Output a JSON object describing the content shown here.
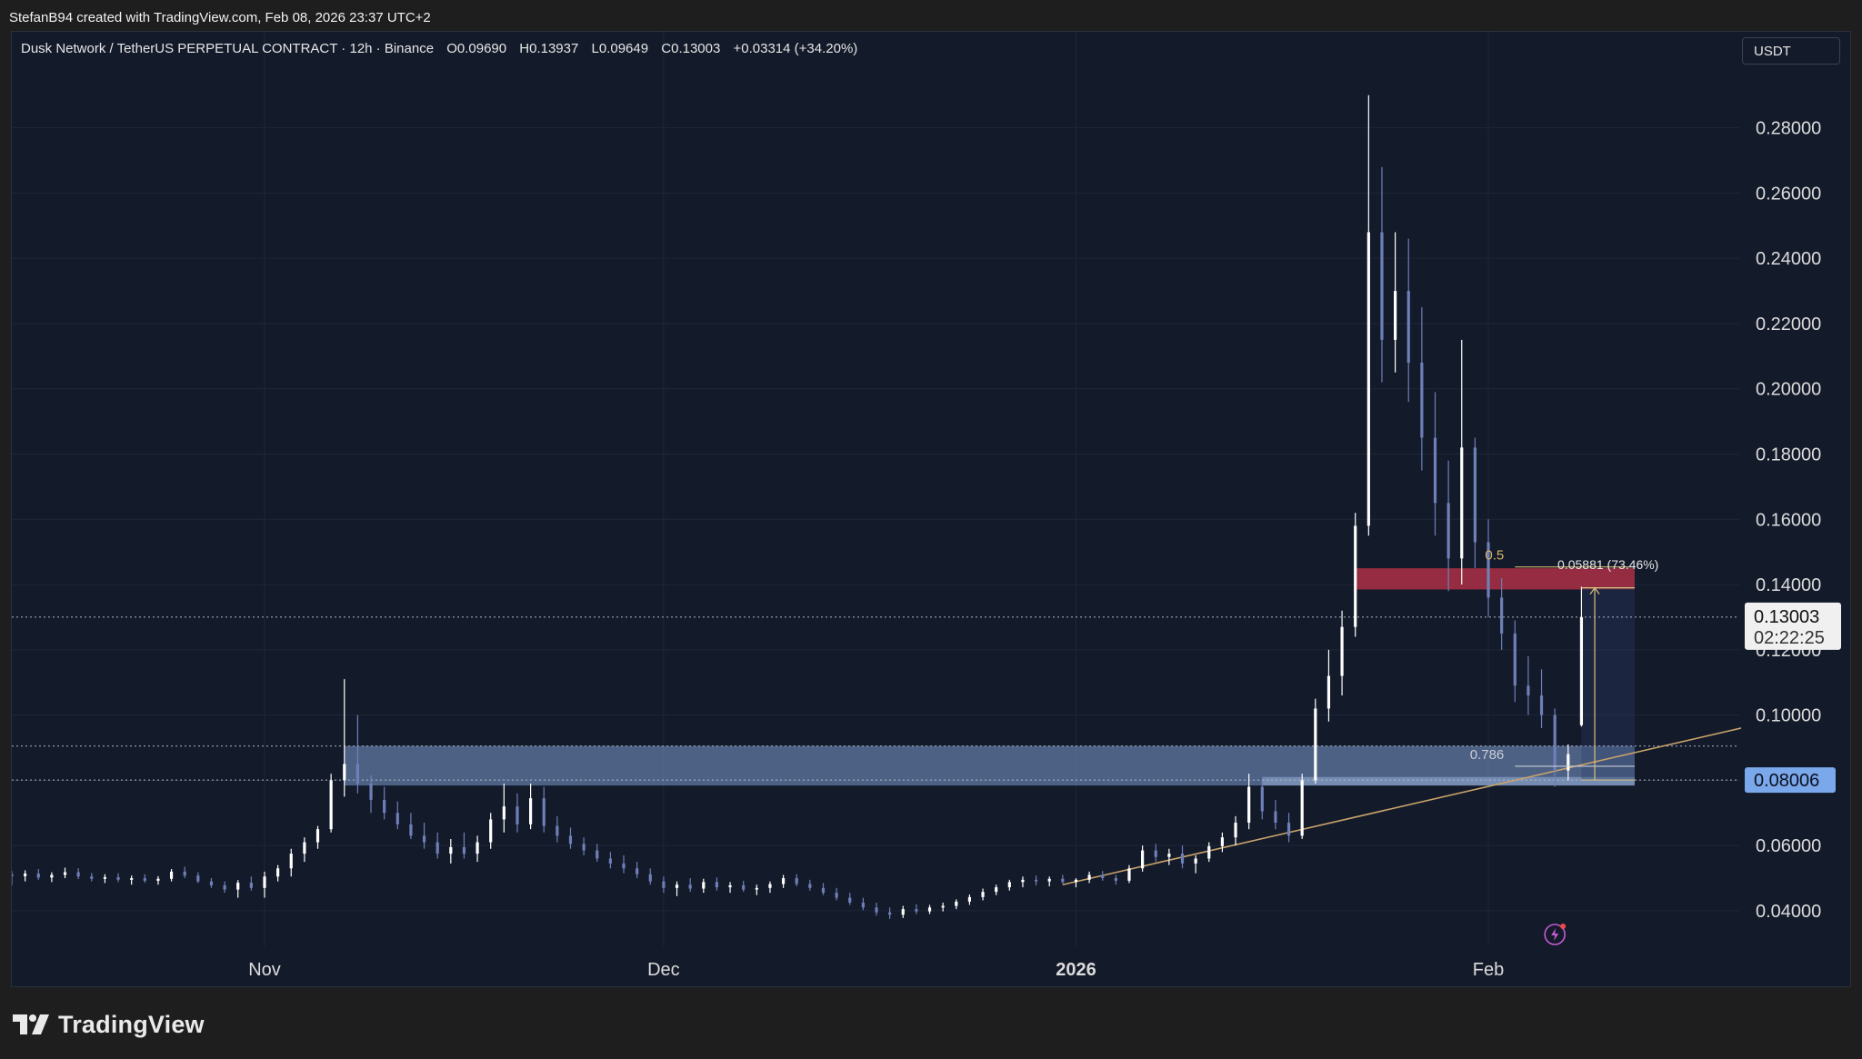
{
  "credit_line": "StefanB94 created with TradingView.com, Feb 08, 2026 23:37 UTC+2",
  "legend": {
    "symbol": "Dusk Network / TetherUS PERPETUAL CONTRACT · 12h · Binance",
    "open": "O0.09690",
    "high": "H0.13937",
    "low": "L0.09649",
    "close": "C0.13003",
    "change": "+0.03314 (+34.20%)"
  },
  "unit_label": "USDT",
  "brand": "TradingView",
  "colors": {
    "background": "#131a2a",
    "up_candle": "#ffffff",
    "down_candle": "#6f7fb8",
    "demand_zone": "#7d9ccf",
    "supply_zone": "#c2334a",
    "trendline": "#c8a26a",
    "price_tag": "#7aa8ea"
  },
  "chart_data": {
    "type": "candlestick",
    "title": "",
    "interval": "12h",
    "y_axis": {
      "min": 0.028,
      "max": 0.2955,
      "ticks": [
        "0.28000",
        "0.26000",
        "0.24000",
        "0.22000",
        "0.20000",
        "0.18000",
        "0.16000",
        "0.14000",
        "0.12000",
        "0.10000",
        "0.08000",
        "0.06000",
        "0.04000"
      ]
    },
    "x_axis": {
      "start": "2025-10-13",
      "end": "2026-02-20",
      "labels": [
        {
          "date": "2025-11-01",
          "text": "Nov",
          "bold": false
        },
        {
          "date": "2025-12-01",
          "text": "Dec",
          "bold": false
        },
        {
          "date": "2026-01-01",
          "text": "2026",
          "bold": true
        },
        {
          "date": "2026-02-01",
          "text": "Feb",
          "bold": false
        }
      ]
    },
    "current_price": {
      "value": 0.13003,
      "label": "0.13003",
      "countdown": "02:22:25"
    },
    "marked_level": {
      "value": 0.08006,
      "label": "0.08006"
    },
    "extra_dotted_level": 0.0905,
    "candles": [
      {
        "date": "2025-10-13",
        "o": 0.0512,
        "h": 0.0522,
        "l": 0.0478,
        "c": 0.0506
      },
      {
        "date": "2025-10-14",
        "o": 0.0506,
        "h": 0.0524,
        "l": 0.049,
        "c": 0.0514
      },
      {
        "date": "2025-10-15",
        "o": 0.0514,
        "h": 0.0528,
        "l": 0.0495,
        "c": 0.0502
      },
      {
        "date": "2025-10-16",
        "o": 0.0502,
        "h": 0.0518,
        "l": 0.0488,
        "c": 0.051
      },
      {
        "date": "2025-10-17",
        "o": 0.051,
        "h": 0.0532,
        "l": 0.05,
        "c": 0.0518
      },
      {
        "date": "2025-10-18",
        "o": 0.0518,
        "h": 0.053,
        "l": 0.0497,
        "c": 0.0505
      },
      {
        "date": "2025-10-19",
        "o": 0.0505,
        "h": 0.0516,
        "l": 0.049,
        "c": 0.0498
      },
      {
        "date": "2025-10-20",
        "o": 0.0498,
        "h": 0.0512,
        "l": 0.0485,
        "c": 0.0503
      },
      {
        "date": "2025-10-21",
        "o": 0.0503,
        "h": 0.0515,
        "l": 0.0488,
        "c": 0.0495
      },
      {
        "date": "2025-10-22",
        "o": 0.0495,
        "h": 0.0508,
        "l": 0.048,
        "c": 0.05
      },
      {
        "date": "2025-10-23",
        "o": 0.05,
        "h": 0.0512,
        "l": 0.0486,
        "c": 0.0492
      },
      {
        "date": "2025-10-24",
        "o": 0.0492,
        "h": 0.0506,
        "l": 0.048,
        "c": 0.0498
      },
      {
        "date": "2025-10-25",
        "o": 0.0498,
        "h": 0.0528,
        "l": 0.049,
        "c": 0.052
      },
      {
        "date": "2025-10-26",
        "o": 0.052,
        "h": 0.0535,
        "l": 0.05,
        "c": 0.0508
      },
      {
        "date": "2025-10-27",
        "o": 0.0508,
        "h": 0.0518,
        "l": 0.0485,
        "c": 0.049
      },
      {
        "date": "2025-10-28",
        "o": 0.049,
        "h": 0.05,
        "l": 0.047,
        "c": 0.0478
      },
      {
        "date": "2025-10-29",
        "o": 0.0478,
        "h": 0.049,
        "l": 0.0455,
        "c": 0.0465
      },
      {
        "date": "2025-10-30",
        "o": 0.0465,
        "h": 0.0494,
        "l": 0.044,
        "c": 0.0486
      },
      {
        "date": "2025-10-31",
        "o": 0.0486,
        "h": 0.0505,
        "l": 0.0462,
        "c": 0.047
      },
      {
        "date": "2025-11-01",
        "o": 0.047,
        "h": 0.052,
        "l": 0.044,
        "c": 0.0505
      },
      {
        "date": "2025-11-02",
        "o": 0.0505,
        "h": 0.054,
        "l": 0.049,
        "c": 0.053
      },
      {
        "date": "2025-11-03",
        "o": 0.053,
        "h": 0.059,
        "l": 0.0505,
        "c": 0.0575
      },
      {
        "date": "2025-11-04",
        "o": 0.0575,
        "h": 0.0625,
        "l": 0.055,
        "c": 0.061
      },
      {
        "date": "2025-11-05",
        "o": 0.061,
        "h": 0.066,
        "l": 0.059,
        "c": 0.065
      },
      {
        "date": "2025-11-06",
        "o": 0.065,
        "h": 0.082,
        "l": 0.064,
        "c": 0.08
      },
      {
        "date": "2025-11-07",
        "o": 0.08,
        "h": 0.111,
        "l": 0.075,
        "c": 0.085
      },
      {
        "date": "2025-11-08",
        "o": 0.085,
        "h": 0.1,
        "l": 0.076,
        "c": 0.079
      },
      {
        "date": "2025-11-09",
        "o": 0.079,
        "h": 0.0815,
        "l": 0.07,
        "c": 0.074
      },
      {
        "date": "2025-11-10",
        "o": 0.074,
        "h": 0.078,
        "l": 0.068,
        "c": 0.07
      },
      {
        "date": "2025-11-11",
        "o": 0.07,
        "h": 0.0735,
        "l": 0.065,
        "c": 0.0665
      },
      {
        "date": "2025-11-12",
        "o": 0.0665,
        "h": 0.07,
        "l": 0.062,
        "c": 0.063
      },
      {
        "date": "2025-11-13",
        "o": 0.063,
        "h": 0.067,
        "l": 0.059,
        "c": 0.061
      },
      {
        "date": "2025-11-14",
        "o": 0.061,
        "h": 0.064,
        "l": 0.056,
        "c": 0.0575
      },
      {
        "date": "2025-11-15",
        "o": 0.0575,
        "h": 0.062,
        "l": 0.0545,
        "c": 0.0595
      },
      {
        "date": "2025-11-16",
        "o": 0.0595,
        "h": 0.064,
        "l": 0.056,
        "c": 0.0575
      },
      {
        "date": "2025-11-17",
        "o": 0.0575,
        "h": 0.063,
        "l": 0.055,
        "c": 0.061
      },
      {
        "date": "2025-11-18",
        "o": 0.061,
        "h": 0.07,
        "l": 0.059,
        "c": 0.068
      },
      {
        "date": "2025-11-19",
        "o": 0.068,
        "h": 0.079,
        "l": 0.064,
        "c": 0.072
      },
      {
        "date": "2025-11-20",
        "o": 0.072,
        "h": 0.076,
        "l": 0.064,
        "c": 0.0665
      },
      {
        "date": "2025-11-21",
        "o": 0.0665,
        "h": 0.079,
        "l": 0.065,
        "c": 0.0745
      },
      {
        "date": "2025-11-22",
        "o": 0.0745,
        "h": 0.078,
        "l": 0.064,
        "c": 0.066
      },
      {
        "date": "2025-11-23",
        "o": 0.066,
        "h": 0.069,
        "l": 0.061,
        "c": 0.063
      },
      {
        "date": "2025-11-24",
        "o": 0.063,
        "h": 0.0655,
        "l": 0.059,
        "c": 0.0605
      },
      {
        "date": "2025-11-25",
        "o": 0.0605,
        "h": 0.0625,
        "l": 0.057,
        "c": 0.0585
      },
      {
        "date": "2025-11-26",
        "o": 0.0585,
        "h": 0.0605,
        "l": 0.055,
        "c": 0.056
      },
      {
        "date": "2025-11-27",
        "o": 0.056,
        "h": 0.058,
        "l": 0.053,
        "c": 0.0545
      },
      {
        "date": "2025-11-28",
        "o": 0.0545,
        "h": 0.057,
        "l": 0.0515,
        "c": 0.053
      },
      {
        "date": "2025-11-29",
        "o": 0.053,
        "h": 0.055,
        "l": 0.05,
        "c": 0.0512
      },
      {
        "date": "2025-11-30",
        "o": 0.0512,
        "h": 0.053,
        "l": 0.048,
        "c": 0.049
      },
      {
        "date": "2025-12-01",
        "o": 0.049,
        "h": 0.0505,
        "l": 0.0455,
        "c": 0.047
      },
      {
        "date": "2025-12-02",
        "o": 0.047,
        "h": 0.049,
        "l": 0.0445,
        "c": 0.048
      },
      {
        "date": "2025-12-03",
        "o": 0.048,
        "h": 0.05,
        "l": 0.0458,
        "c": 0.0468
      },
      {
        "date": "2025-12-04",
        "o": 0.0468,
        "h": 0.0498,
        "l": 0.0455,
        "c": 0.0488
      },
      {
        "date": "2025-12-05",
        "o": 0.0488,
        "h": 0.0502,
        "l": 0.0462,
        "c": 0.0472
      },
      {
        "date": "2025-12-06",
        "o": 0.0472,
        "h": 0.0488,
        "l": 0.0455,
        "c": 0.0478
      },
      {
        "date": "2025-12-07",
        "o": 0.0478,
        "h": 0.0492,
        "l": 0.0458,
        "c": 0.0465
      },
      {
        "date": "2025-12-08",
        "o": 0.0465,
        "h": 0.048,
        "l": 0.0448,
        "c": 0.047
      },
      {
        "date": "2025-12-09",
        "o": 0.047,
        "h": 0.049,
        "l": 0.0455,
        "c": 0.0482
      },
      {
        "date": "2025-12-10",
        "o": 0.0482,
        "h": 0.051,
        "l": 0.047,
        "c": 0.05
      },
      {
        "date": "2025-12-11",
        "o": 0.05,
        "h": 0.0512,
        "l": 0.0475,
        "c": 0.0482
      },
      {
        "date": "2025-12-12",
        "o": 0.0482,
        "h": 0.0495,
        "l": 0.0462,
        "c": 0.047
      },
      {
        "date": "2025-12-13",
        "o": 0.047,
        "h": 0.0485,
        "l": 0.0448,
        "c": 0.0455
      },
      {
        "date": "2025-12-14",
        "o": 0.0455,
        "h": 0.047,
        "l": 0.0432,
        "c": 0.044
      },
      {
        "date": "2025-12-15",
        "o": 0.044,
        "h": 0.0455,
        "l": 0.0418,
        "c": 0.0425
      },
      {
        "date": "2025-12-16",
        "o": 0.0425,
        "h": 0.044,
        "l": 0.0402,
        "c": 0.041
      },
      {
        "date": "2025-12-17",
        "o": 0.041,
        "h": 0.0425,
        "l": 0.0385,
        "c": 0.0395
      },
      {
        "date": "2025-12-18",
        "o": 0.0395,
        "h": 0.041,
        "l": 0.0375,
        "c": 0.0388
      },
      {
        "date": "2025-12-19",
        "o": 0.0388,
        "h": 0.0415,
        "l": 0.0378,
        "c": 0.0405
      },
      {
        "date": "2025-12-20",
        "o": 0.0405,
        "h": 0.042,
        "l": 0.039,
        "c": 0.0398
      },
      {
        "date": "2025-12-21",
        "o": 0.0398,
        "h": 0.0418,
        "l": 0.039,
        "c": 0.041
      },
      {
        "date": "2025-12-22",
        "o": 0.041,
        "h": 0.0425,
        "l": 0.0398,
        "c": 0.0415
      },
      {
        "date": "2025-12-23",
        "o": 0.0415,
        "h": 0.0435,
        "l": 0.0405,
        "c": 0.0428
      },
      {
        "date": "2025-12-24",
        "o": 0.0428,
        "h": 0.045,
        "l": 0.0418,
        "c": 0.0442
      },
      {
        "date": "2025-12-25",
        "o": 0.0442,
        "h": 0.0468,
        "l": 0.0432,
        "c": 0.0458
      },
      {
        "date": "2025-12-26",
        "o": 0.0458,
        "h": 0.048,
        "l": 0.0448,
        "c": 0.0472
      },
      {
        "date": "2025-12-27",
        "o": 0.0472,
        "h": 0.0495,
        "l": 0.0462,
        "c": 0.0488
      },
      {
        "date": "2025-12-28",
        "o": 0.0488,
        "h": 0.0505,
        "l": 0.0472,
        "c": 0.0495
      },
      {
        "date": "2025-12-29",
        "o": 0.0495,
        "h": 0.0508,
        "l": 0.0478,
        "c": 0.049
      },
      {
        "date": "2025-12-30",
        "o": 0.049,
        "h": 0.0505,
        "l": 0.0475,
        "c": 0.0498
      },
      {
        "date": "2025-12-31",
        "o": 0.0498,
        "h": 0.051,
        "l": 0.0482,
        "c": 0.0488
      },
      {
        "date": "2026-01-01",
        "o": 0.0488,
        "h": 0.05,
        "l": 0.0472,
        "c": 0.0495
      },
      {
        "date": "2026-01-02",
        "o": 0.0495,
        "h": 0.052,
        "l": 0.0485,
        "c": 0.051
      },
      {
        "date": "2026-01-03",
        "o": 0.051,
        "h": 0.0522,
        "l": 0.0492,
        "c": 0.05
      },
      {
        "date": "2026-01-04",
        "o": 0.05,
        "h": 0.051,
        "l": 0.048,
        "c": 0.0492
      },
      {
        "date": "2026-01-05",
        "o": 0.0492,
        "h": 0.054,
        "l": 0.0485,
        "c": 0.053
      },
      {
        "date": "2026-01-06",
        "o": 0.053,
        "h": 0.06,
        "l": 0.052,
        "c": 0.0585
      },
      {
        "date": "2026-01-07",
        "o": 0.0585,
        "h": 0.0605,
        "l": 0.055,
        "c": 0.0565
      },
      {
        "date": "2026-01-08",
        "o": 0.0565,
        "h": 0.059,
        "l": 0.054,
        "c": 0.0575
      },
      {
        "date": "2026-01-09",
        "o": 0.0575,
        "h": 0.06,
        "l": 0.053,
        "c": 0.0545
      },
      {
        "date": "2026-01-10",
        "o": 0.0545,
        "h": 0.057,
        "l": 0.0515,
        "c": 0.056
      },
      {
        "date": "2026-01-11",
        "o": 0.056,
        "h": 0.061,
        "l": 0.055,
        "c": 0.0598
      },
      {
        "date": "2026-01-12",
        "o": 0.0598,
        "h": 0.064,
        "l": 0.058,
        "c": 0.0625
      },
      {
        "date": "2026-01-13",
        "o": 0.0625,
        "h": 0.069,
        "l": 0.06,
        "c": 0.067
      },
      {
        "date": "2026-01-14",
        "o": 0.067,
        "h": 0.082,
        "l": 0.065,
        "c": 0.078
      },
      {
        "date": "2026-01-15",
        "o": 0.078,
        "h": 0.08,
        "l": 0.068,
        "c": 0.0705
      },
      {
        "date": "2026-01-16",
        "o": 0.0705,
        "h": 0.074,
        "l": 0.065,
        "c": 0.067
      },
      {
        "date": "2026-01-17",
        "o": 0.067,
        "h": 0.07,
        "l": 0.061,
        "c": 0.063
      },
      {
        "date": "2026-01-18",
        "o": 0.063,
        "h": 0.082,
        "l": 0.062,
        "c": 0.08
      },
      {
        "date": "2026-01-19",
        "o": 0.08,
        "h": 0.105,
        "l": 0.079,
        "c": 0.102
      },
      {
        "date": "2026-01-20",
        "o": 0.102,
        "h": 0.12,
        "l": 0.098,
        "c": 0.112
      },
      {
        "date": "2026-01-21",
        "o": 0.112,
        "h": 0.132,
        "l": 0.106,
        "c": 0.127
      },
      {
        "date": "2026-01-22",
        "o": 0.127,
        "h": 0.162,
        "l": 0.124,
        "c": 0.158
      },
      {
        "date": "2026-01-23",
        "o": 0.158,
        "h": 0.29,
        "l": 0.155,
        "c": 0.248
      },
      {
        "date": "2026-01-24",
        "o": 0.248,
        "h": 0.268,
        "l": 0.202,
        "c": 0.215
      },
      {
        "date": "2026-01-25",
        "o": 0.215,
        "h": 0.248,
        "l": 0.205,
        "c": 0.23
      },
      {
        "date": "2026-01-26",
        "o": 0.23,
        "h": 0.246,
        "l": 0.196,
        "c": 0.208
      },
      {
        "date": "2026-01-27",
        "o": 0.208,
        "h": 0.225,
        "l": 0.175,
        "c": 0.185
      },
      {
        "date": "2026-01-28",
        "o": 0.185,
        "h": 0.199,
        "l": 0.155,
        "c": 0.165
      },
      {
        "date": "2026-01-29",
        "o": 0.165,
        "h": 0.178,
        "l": 0.138,
        "c": 0.148
      },
      {
        "date": "2026-01-30",
        "o": 0.148,
        "h": 0.215,
        "l": 0.14,
        "c": 0.182
      },
      {
        "date": "2026-01-31",
        "o": 0.182,
        "h": 0.185,
        "l": 0.145,
        "c": 0.153
      },
      {
        "date": "2026-02-01",
        "o": 0.153,
        "h": 0.16,
        "l": 0.13,
        "c": 0.136
      },
      {
        "date": "2026-02-02",
        "o": 0.136,
        "h": 0.142,
        "l": 0.12,
        "c": 0.125
      },
      {
        "date": "2026-02-03",
        "o": 0.125,
        "h": 0.129,
        "l": 0.104,
        "c": 0.109
      },
      {
        "date": "2026-02-04",
        "o": 0.109,
        "h": 0.118,
        "l": 0.1,
        "c": 0.106
      },
      {
        "date": "2026-02-05",
        "o": 0.106,
        "h": 0.114,
        "l": 0.096,
        "c": 0.1
      },
      {
        "date": "2026-02-06",
        "o": 0.1,
        "h": 0.102,
        "l": 0.078,
        "c": 0.083
      },
      {
        "date": "2026-02-07",
        "o": 0.083,
        "h": 0.091,
        "l": 0.08,
        "c": 0.088
      },
      {
        "date": "2026-02-08",
        "o": 0.0969,
        "h": 0.13937,
        "l": 0.09649,
        "c": 0.13003
      }
    ],
    "annotations": {
      "demand_zone": {
        "from": "2025-11-07",
        "to": "2026-02-12",
        "top": 0.0905,
        "bottom": 0.0784
      },
      "demand_zone_inner": {
        "from": "2026-01-15",
        "to": "2026-02-12",
        "top": 0.081,
        "bottom": 0.0784
      },
      "supply_zone": {
        "from": "2026-01-22",
        "to": "2026-02-12",
        "top": 0.145,
        "bottom": 0.1385
      },
      "fib_levels": [
        {
          "label": "0.5",
          "value": 0.1454,
          "from": "2026-02-03",
          "to": "2026-02-12"
        },
        {
          "label": "0.786",
          "value": 0.0843,
          "from": "2026-02-03",
          "to": "2026-02-12"
        }
      ],
      "price_range": {
        "label": "0.05881 (73.46%)",
        "from_value": 0.0801,
        "to_value": 0.139,
        "date": "2026-02-09"
      },
      "trendline": {
        "from": {
          "date": "2025-12-31",
          "value": 0.048
        },
        "to": {
          "date": "2026-02-20",
          "value": 0.096
        }
      }
    }
  }
}
